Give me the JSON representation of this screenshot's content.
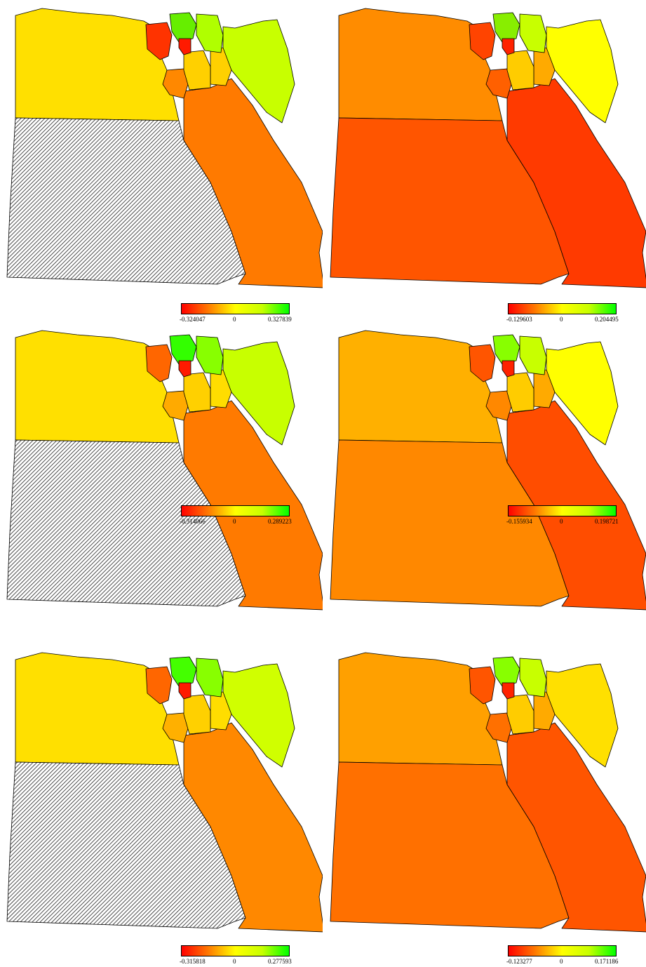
{
  "colors": {
    "outline": "#000000",
    "hatch": "#222222",
    "ramp": [
      "#ff0000",
      "#ff7a00",
      "#ffff00",
      "#00ff00"
    ]
  },
  "panels": [
    {
      "column": "left",
      "legend": {
        "min": "-0.324047",
        "zero": "0",
        "max": "0.327839"
      },
      "fills": {
        "west": "#ffe000",
        "southwest": "hatched",
        "redsea": "#ff7a00",
        "sinai": "#c8ff00",
        "giza_arm": "#ff8800",
        "delta_a": "#ff3300",
        "delta_b": "#66ee00",
        "delta_c": "#ffd000",
        "delta_d": "#b0ff00",
        "delta_e": "#ff1a00",
        "canal": "#ffd000"
      }
    },
    {
      "column": "right",
      "legend": {
        "min": "-0.129603",
        "zero": "0",
        "max": "0.204495"
      },
      "fills": {
        "west": "#ff8c00",
        "southwest": "#ff5500",
        "redsea": "#ff3a00",
        "sinai": "#ffff00",
        "giza_arm": "#ff6000",
        "delta_a": "#ff4400",
        "delta_b": "#88ee00",
        "delta_c": "#ffcc00",
        "delta_d": "#c8ff00",
        "delta_e": "#ff2200",
        "canal": "#ffaa00"
      }
    },
    {
      "column": "left",
      "legend": {
        "min": "-0.314066",
        "zero": "0",
        "max": "0.289223"
      },
      "fills": {
        "west": "#ffe000",
        "southwest": "hatched",
        "redsea": "#ff7a00",
        "sinai": "#c8ff00",
        "giza_arm": "#ffaa00",
        "delta_a": "#ff6600",
        "delta_b": "#33ff00",
        "delta_c": "#ffd000",
        "delta_d": "#88ff00",
        "delta_e": "#ff1a00",
        "canal": "#ffdd00"
      }
    },
    {
      "column": "right",
      "legend": {
        "min": "-0.155934",
        "zero": "0",
        "max": "0.198721"
      },
      "fills": {
        "west": "#ffb000",
        "southwest": "#ff8800",
        "redsea": "#ff4d00",
        "sinai": "#ffff00",
        "giza_arm": "#ff8800",
        "delta_a": "#ff5500",
        "delta_b": "#88ff00",
        "delta_c": "#ffcc00",
        "delta_d": "#c8ff00",
        "delta_e": "#ff2200",
        "canal": "#ffaa00"
      }
    },
    {
      "column": "left",
      "legend": {
        "min": "-0.315818",
        "zero": "0",
        "max": "0.277593"
      },
      "fills": {
        "west": "#ffe000",
        "southwest": "hatched",
        "redsea": "#ff8800",
        "sinai": "#d0ff00",
        "giza_arm": "#ffb000",
        "delta_a": "#ff6600",
        "delta_b": "#44ff00",
        "delta_c": "#ffd000",
        "delta_d": "#88ff00",
        "delta_e": "#ff1a00",
        "canal": "#ffdd00"
      }
    },
    {
      "column": "right",
      "legend": {
        "min": "-0.123277",
        "zero": "0",
        "max": "0.171186"
      },
      "fills": {
        "west": "#ffa000",
        "southwest": "#ff7000",
        "redsea": "#ff5500",
        "sinai": "#ffe000",
        "giza_arm": "#ff7000",
        "delta_a": "#ff5500",
        "delta_b": "#88ff00",
        "delta_c": "#ffcc00",
        "delta_d": "#c8ff00",
        "delta_e": "#ff2200",
        "canal": "#ffaa00"
      }
    }
  ]
}
